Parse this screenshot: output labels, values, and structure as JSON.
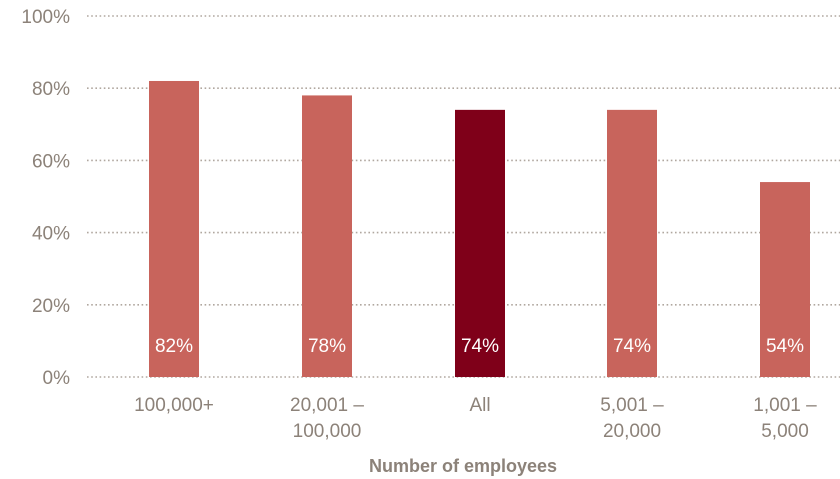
{
  "chart_data": {
    "type": "bar",
    "categories": [
      [
        "100,000+"
      ],
      [
        "20,001 –",
        "100,000"
      ],
      [
        "All"
      ],
      [
        "5,001 –",
        "20,000"
      ],
      [
        "1,001 –",
        "5,000"
      ]
    ],
    "values": [
      82,
      78,
      74,
      74,
      54
    ],
    "data_labels": [
      "82%",
      "78%",
      "74%",
      "74%",
      "54%"
    ],
    "highlighted_category_index": 2,
    "xlabel": "Number of employees",
    "ylabel": "",
    "ylim": [
      0,
      100
    ],
    "yticks": [
      0,
      20,
      40,
      60,
      80,
      100
    ],
    "ytick_labels": [
      "0%",
      "20%",
      "40%",
      "60%",
      "80%",
      "100%"
    ],
    "grid": true,
    "legend": "none",
    "colors": {
      "bar": "#c8645c",
      "bar_highlight": "#7f0019",
      "grid": "#b0a79f",
      "text": "#8c8279",
      "bar_label": "#ffffff"
    }
  }
}
